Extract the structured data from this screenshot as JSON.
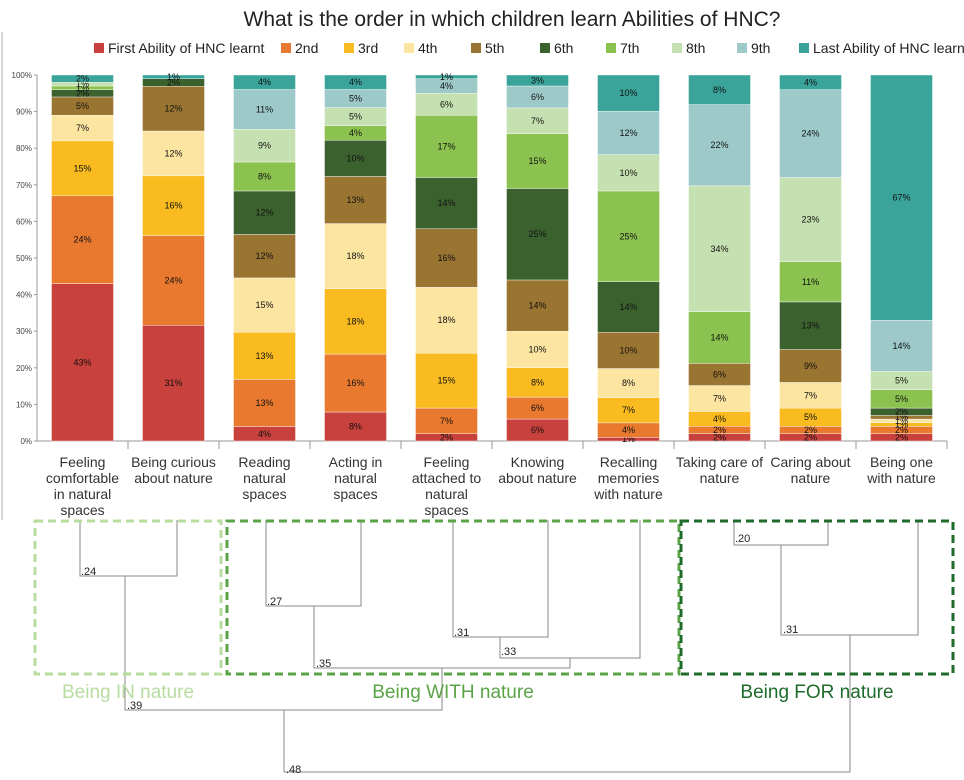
{
  "chart_data": {
    "type": "stacked-bar",
    "title": "What is the order in which children learn Abilities of HNC?",
    "ylim": [
      0,
      100
    ],
    "y_ticks": [
      "0%",
      "10%",
      "20%",
      "30%",
      "40%",
      "50%",
      "60%",
      "70%",
      "80%",
      "90%",
      "100%"
    ],
    "legend": [
      {
        "name": "First Ability of HNC learnt",
        "color": "#c8413c"
      },
      {
        "name": "2nd",
        "color": "#e8792f"
      },
      {
        "name": "3rd",
        "color": "#f9bb1f"
      },
      {
        "name": "4th",
        "color": "#fbe5a1"
      },
      {
        "name": "5th",
        "color": "#9a7431"
      },
      {
        "name": "6th",
        "color": "#3b622e"
      },
      {
        "name": "7th",
        "color": "#8cc24f"
      },
      {
        "name": "8th",
        "color": "#c6e1b1"
      },
      {
        "name": "9th",
        "color": "#9dcac9"
      },
      {
        "name": "Last Ability of HNC learnt",
        "color": "#3aa39a"
      }
    ],
    "categories": [
      {
        "lines": [
          "Feeling",
          "comfortable",
          "in natural",
          "spaces"
        ],
        "values": [
          43,
          24,
          15,
          7,
          5,
          2,
          1,
          1,
          0,
          2
        ],
        "labels": [
          "43%",
          "24%",
          "15%",
          "7%",
          "5%",
          "2%",
          "1%",
          "1%",
          "",
          "2%"
        ]
      },
      {
        "lines": [
          "Being curious",
          "about nature"
        ],
        "values": [
          31,
          24,
          16,
          12,
          12,
          2,
          0,
          0,
          0,
          1
        ],
        "labels": [
          "31%",
          "24%",
          "16%",
          "12%",
          "12%",
          "2%",
          "",
          "",
          "",
          "1%"
        ]
      },
      {
        "lines": [
          "Reading",
          "natural",
          "spaces"
        ],
        "values": [
          4,
          13,
          13,
          15,
          12,
          12,
          8,
          9,
          11,
          4
        ],
        "labels": [
          "4%",
          "13%",
          "13%",
          "15%",
          "12%",
          "12%",
          "8%",
          "9%",
          "11%",
          "4%"
        ]
      },
      {
        "lines": [
          "Acting in",
          "natural",
          "spaces"
        ],
        "values": [
          8,
          16,
          18,
          18,
          13,
          10,
          4,
          5,
          5,
          4
        ],
        "labels": [
          "8%",
          "16%",
          "18%",
          "18%",
          "13%",
          "10%",
          "4%",
          "5%",
          "5%",
          "4%"
        ]
      },
      {
        "lines": [
          "Feeling",
          "attached to",
          "natural",
          "spaces"
        ],
        "values": [
          2,
          7,
          15,
          18,
          16,
          14,
          17,
          6,
          4,
          1
        ],
        "labels": [
          "2%",
          "7%",
          "15%",
          "18%",
          "16%",
          "14%",
          "17%",
          "6%",
          "4%",
          "1%"
        ]
      },
      {
        "lines": [
          "Knowing",
          "about nature"
        ],
        "values": [
          6,
          6,
          8,
          10,
          14,
          25,
          15,
          7,
          6,
          3
        ],
        "labels": [
          "6%",
          "6%",
          "8%",
          "10%",
          "14%",
          "25%",
          "15%",
          "7%",
          "6%",
          "3%"
        ]
      },
      {
        "lines": [
          "Recalling",
          "memories",
          "with nature"
        ],
        "values": [
          1,
          4,
          7,
          8,
          10,
          14,
          25,
          10,
          12,
          10
        ],
        "labels": [
          "1%",
          "4%",
          "7%",
          "8%",
          "10%",
          "14%",
          "25%",
          "10%",
          "12%",
          "10%"
        ]
      },
      {
        "lines": [
          "Taking care of",
          "nature"
        ],
        "values": [
          2,
          2,
          4,
          7,
          6,
          0,
          14,
          34,
          22,
          8
        ],
        "labels": [
          "2%",
          "2%",
          "4%",
          "7%",
          "6%",
          "",
          "14%",
          "34%",
          "22%",
          "8%"
        ]
      },
      {
        "lines": [
          "Caring about",
          "nature"
        ],
        "values": [
          2,
          2,
          5,
          7,
          9,
          13,
          11,
          23,
          24,
          4
        ],
        "labels": [
          "2%",
          "2%",
          "5%",
          "7%",
          "9%",
          "13%",
          "11%",
          "23%",
          "24%",
          "4%"
        ]
      },
      {
        "lines": [
          "Being one",
          "with nature"
        ],
        "values": [
          2,
          2,
          1,
          1,
          1,
          2,
          5,
          5,
          14,
          67
        ],
        "labels": [
          "2%",
          "2%",
          "1%",
          "1%",
          "1%",
          "2%",
          "5%",
          "5%",
          "14%",
          "67%"
        ]
      }
    ]
  },
  "dendrogram": {
    "values": [
      ".24",
      ".27",
      ".31",
      ".33",
      ".35",
      ".39",
      ".20",
      ".31",
      ".48"
    ],
    "groups": [
      {
        "label": "Being IN nature",
        "color": "#b7dca0"
      },
      {
        "label": "Being WITH nature",
        "color": "#5aa347"
      },
      {
        "label": "Being FOR nature",
        "color": "#1f6b2b"
      }
    ]
  }
}
